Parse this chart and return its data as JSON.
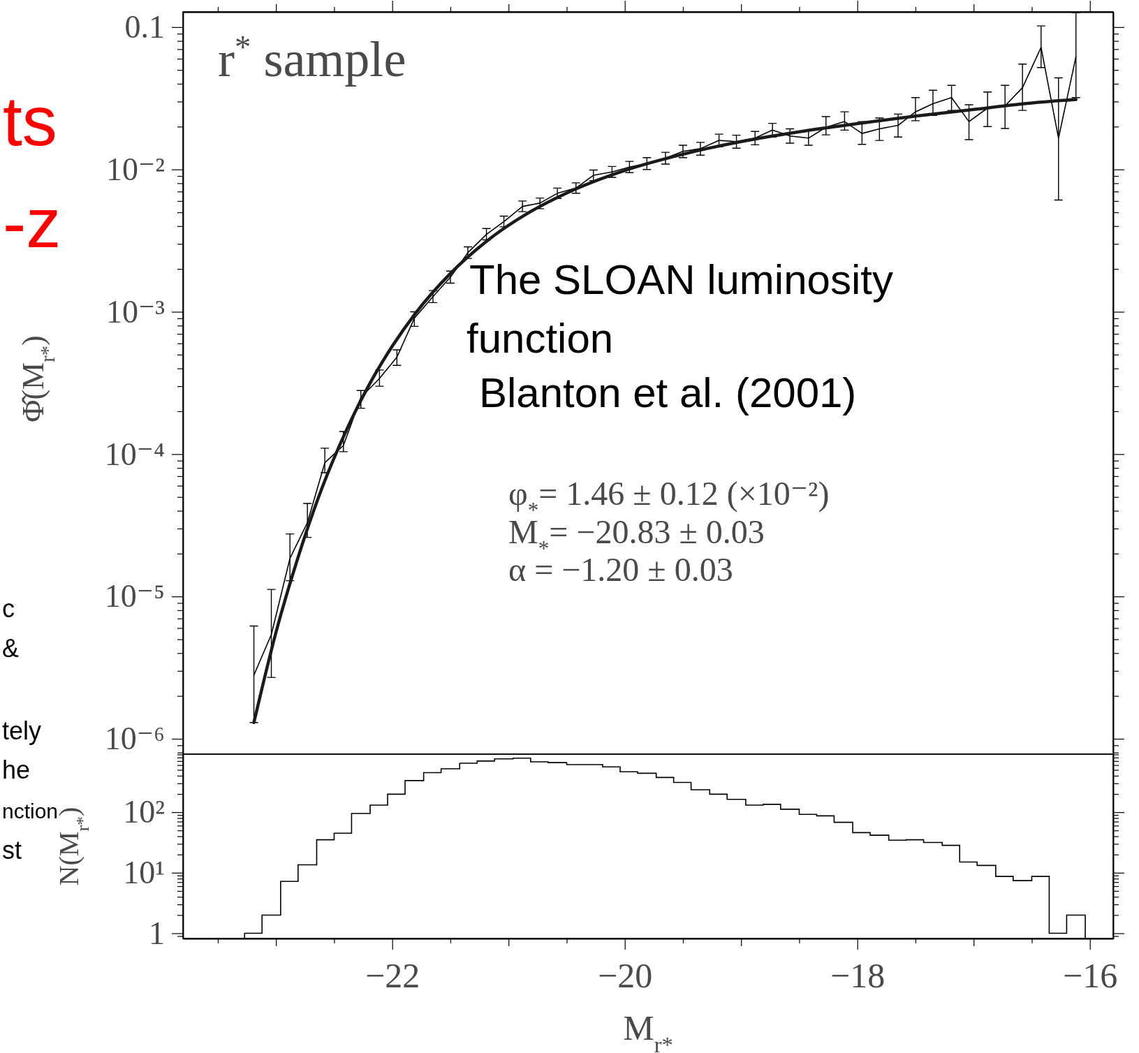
{
  "chart_data": [
    {
      "type": "line",
      "ylabel": "Φ̂(M$_{r*}$)",
      "log": "y",
      "tick_labels": "y",
      "xlim": [
        -23.8,
        -15.8
      ],
      "xticks": [
        {
          "value": -23.5,
          "label": null
        },
        {
          "value": -23,
          "label": null
        },
        {
          "value": -22.5,
          "label": null
        },
        {
          "value": -22,
          "label": null
        },
        {
          "value": -21.5,
          "label": null
        },
        {
          "value": -21,
          "label": null
        },
        {
          "value": -20.5,
          "label": null
        },
        {
          "value": -20,
          "label": null
        },
        {
          "value": -19.5,
          "label": null
        },
        {
          "value": -19,
          "label": null
        },
        {
          "value": -18.5,
          "label": null
        },
        {
          "value": -18,
          "label": null
        },
        {
          "value": -17.5,
          "label": null
        },
        {
          "value": -17,
          "label": null
        },
        {
          "value": -16.5,
          "label": null
        },
        {
          "value": -16,
          "label": null
        }
      ],
      "ylim": [
        7.8e-07,
        0.128
      ],
      "yticks": [
        {
          "value": 8e-07,
          "label": null
        },
        {
          "value": 9e-07,
          "label": null
        },
        {
          "value": 1e-06,
          "label": "10⁻⁶"
        },
        {
          "value": 2e-06,
          "label": null
        },
        {
          "value": 3e-06,
          "label": null
        },
        {
          "value": 4e-06,
          "label": null
        },
        {
          "value": 5e-06,
          "label": null
        },
        {
          "value": 6e-06,
          "label": null
        },
        {
          "value": 7e-06,
          "label": null
        },
        {
          "value": 8e-06,
          "label": null
        },
        {
          "value": 9e-06,
          "label": null
        },
        {
          "value": 1e-05,
          "label": "10⁻⁵"
        },
        {
          "value": 2e-05,
          "label": null
        },
        {
          "value": 3e-05,
          "label": null
        },
        {
          "value": 4e-05,
          "label": null
        },
        {
          "value": 5e-05,
          "label": null
        },
        {
          "value": 6e-05,
          "label": null
        },
        {
          "value": 7e-05,
          "label": null
        },
        {
          "value": 8e-05,
          "label": null
        },
        {
          "value": 9e-05,
          "label": null
        },
        {
          "value": 0.0001,
          "label": "10⁻⁴"
        },
        {
          "value": 0.0002,
          "label": null
        },
        {
          "value": 0.0003,
          "label": null
        },
        {
          "value": 0.0004,
          "label": null
        },
        {
          "value": 0.0005,
          "label": null
        },
        {
          "value": 0.0006,
          "label": null
        },
        {
          "value": 0.0007,
          "label": null
        },
        {
          "value": 0.0008,
          "label": null
        },
        {
          "value": 0.0009,
          "label": null
        },
        {
          "value": 0.001,
          "label": "10⁻³"
        },
        {
          "value": 0.002,
          "label": null
        },
        {
          "value": 0.003,
          "label": null
        },
        {
          "value": 0.004,
          "label": null
        },
        {
          "value": 0.005,
          "label": null
        },
        {
          "value": 0.006,
          "label": null
        },
        {
          "value": 0.007,
          "label": null
        },
        {
          "value": 0.008,
          "label": null
        },
        {
          "value": 0.009,
          "label": null
        },
        {
          "value": 0.01,
          "label": "10⁻²"
        },
        {
          "value": 0.02,
          "label": null
        },
        {
          "value": 0.03,
          "label": null
        },
        {
          "value": 0.04,
          "label": null
        },
        {
          "value": 0.05,
          "label": null
        },
        {
          "value": 0.06,
          "label": null
        },
        {
          "value": 0.07,
          "label": null
        },
        {
          "value": 0.08,
          "label": null
        },
        {
          "value": 0.09,
          "label": null
        },
        0.1
      ],
      "series": [
        {
          "color": "#000000",
          "x": [
            -23.19,
            -23.04,
            -22.88,
            -22.73,
            -22.58,
            -22.42,
            -22.27,
            -22.11,
            -21.96,
            -21.81,
            -21.65,
            -21.5,
            -21.35,
            -21.19,
            -21.04,
            -20.88,
            -20.73,
            -20.58,
            -20.42,
            -20.27,
            -20.11,
            -19.96,
            -19.81,
            -19.65,
            -19.5,
            -19.35,
            -19.19,
            -19.04,
            -18.88,
            -18.73,
            -18.58,
            -18.42,
            -18.27,
            -18.11,
            -17.96,
            -17.81,
            -17.65,
            -17.5,
            -17.35,
            -17.19,
            -17.04,
            -16.88,
            -16.73,
            -16.58,
            -16.42,
            -16.27,
            -16.12
          ],
          "values": [
            2.8e-06,
            5.4e-06,
            1.85e-05,
            3.3e-05,
            8.7e-05,
            0.000115,
            0.00025,
            0.00034,
            0.00048,
            0.0009,
            0.00128,
            0.00175,
            0.0026,
            0.0035,
            0.0043,
            0.0055,
            0.0058,
            0.0068,
            0.0074,
            0.0091,
            0.0096,
            0.0104,
            0.011,
            0.012,
            0.0134,
            0.014,
            0.016,
            0.0157,
            0.0166,
            0.0189,
            0.0172,
            0.0166,
            0.0198,
            0.0217,
            0.0179,
            0.0193,
            0.0204,
            0.0254,
            0.029,
            0.032,
            0.0217,
            0.027,
            0.028,
            0.0375,
            0.072,
            0.0166,
            0.062
          ],
          "errors": [
            [
              1.3e-06,
              6.2e-06
            ],
            [
              2.7e-06,
              1.12e-05
            ],
            [
              1.29e-05,
              2.75e-05
            ],
            [
              2.6e-05,
              4.5e-05
            ],
            [
              7.4e-05,
              0.00011
            ],
            [
              0.000104,
              0.000144
            ],
            [
              0.00021,
              0.00028
            ],
            [
              0.0003,
              0.00039
            ],
            [
              0.00042,
              0.00054
            ],
            [
              0.00079,
              0.001
            ],
            [
              0.00116,
              0.00141
            ],
            [
              0.00159,
              0.00193
            ],
            [
              0.00237,
              0.00286
            ],
            [
              0.0032,
              0.00385
            ],
            [
              0.00395,
              0.0047
            ],
            [
              0.00505,
              0.006
            ],
            [
              0.0053,
              0.0063
            ],
            [
              0.00625,
              0.0074
            ],
            [
              0.0068,
              0.00805
            ],
            [
              0.00835,
              0.0099
            ],
            [
              0.0088,
              0.0105
            ],
            [
              0.0095,
              0.0114
            ],
            [
              0.01,
              0.0121
            ],
            [
              0.0109,
              0.0132
            ],
            [
              0.0121,
              0.0148
            ],
            [
              0.0126,
              0.0155
            ],
            [
              0.0144,
              0.0177
            ],
            [
              0.0141,
              0.0174
            ],
            [
              0.0149,
              0.0185
            ],
            [
              0.0169,
              0.0211
            ],
            [
              0.0153,
              0.0193
            ],
            [
              0.0148,
              0.0187
            ],
            [
              0.0175,
              0.0235
            ],
            [
              0.0189,
              0.0254
            ],
            [
              0.015,
              0.0217
            ],
            [
              0.016,
              0.023
            ],
            [
              0.0169,
              0.0245
            ],
            [
              0.022,
              0.032
            ],
            [
              0.024,
              0.036
            ],
            [
              0.026,
              0.039
            ],
            [
              0.0162,
              0.0285
            ],
            [
              0.02,
              0.035
            ],
            [
              0.0194,
              0.039
            ],
            [
              0.026,
              0.055
            ],
            [
              0.052,
              0.102
            ],
            [
              0.0061,
              0.044
            ],
            [
              0.032,
              0.126
            ]
          ]
        },
        {
          "color": "#1a1a1a",
          "x": [
            -23.19,
            -23.0,
            -22.8,
            -22.6,
            -22.4,
            -22.2,
            -22.0,
            -21.8,
            -21.5,
            -21.2,
            -20.83,
            -20.5,
            -20.0,
            -19.5,
            -19.0,
            -18.5,
            -18.0,
            -17.5,
            -17.0,
            -16.5,
            -16.12
          ],
          "values": [
            1.3e-06,
            5.6e-06,
            2e-05,
            5.9e-05,
            0.000144,
            0.000306,
            0.000573,
            0.000977,
            0.00186,
            0.00308,
            0.00495,
            0.00683,
            0.00984,
            0.0128,
            0.0157,
            0.0184,
            0.021,
            0.0237,
            0.0264,
            0.0293,
            0.031
          ]
        }
      ],
      "annotations": [
        "r$^{*}$ sample",
        "The SLOAN luminosity function",
        "Blanton et al. (2001)",
        "φ$_{*}$=   1.46 ± 0.12 (×10⁻²)",
        "M$_{*}$= −20.83 ± 0.03",
        "α   = −1.20 ± 0.03",
        "ts",
        "-z",
        "c",
        "&",
        "tely",
        "he",
        "nction",
        "st"
      ]
    },
    {
      "type": "histogram",
      "xlabel": "M$_{r*}$",
      "ylabel": "N(M$_{r*}$)",
      "log": "y",
      "xlim": [
        -23.8,
        -15.8
      ],
      "xticks": [
        {
          "value": -23.5,
          "label": null
        },
        {
          "value": -23,
          "label": null
        },
        {
          "value": -22.5,
          "label": null
        },
        {
          "value": -22,
          "label": "−22"
        },
        {
          "value": -21.5,
          "label": null
        },
        {
          "value": -21,
          "label": null
        },
        {
          "value": -20.5,
          "label": null
        },
        {
          "value": -20,
          "label": "−20"
        },
        {
          "value": -19.5,
          "label": null
        },
        {
          "value": -19,
          "label": null
        },
        {
          "value": -18.5,
          "label": null
        },
        {
          "value": -18,
          "label": "−18"
        },
        {
          "value": -17.5,
          "label": null
        },
        {
          "value": -17,
          "label": null
        },
        {
          "value": -16.5,
          "label": null
        },
        {
          "value": -16,
          "label": "−16"
        }
      ],
      "ylim": [
        0.82,
        910
      ],
      "yticks": [
        {
          "value": 0.9,
          "label": null
        },
        1,
        {
          "value": 2,
          "label": null
        },
        {
          "value": 3,
          "label": null
        },
        {
          "value": 4,
          "label": null
        },
        {
          "value": 5,
          "label": null
        },
        {
          "value": 6,
          "label": null
        },
        {
          "value": 7,
          "label": null
        },
        {
          "value": 8,
          "label": null
        },
        {
          "value": 9,
          "label": null
        },
        {
          "value": 10,
          "label": "10¹"
        },
        {
          "value": 20,
          "label": null
        },
        {
          "value": 30,
          "label": null
        },
        {
          "value": 40,
          "label": null
        },
        {
          "value": 50,
          "label": null
        },
        {
          "value": 60,
          "label": null
        },
        {
          "value": 70,
          "label": null
        },
        {
          "value": 80,
          "label": null
        },
        {
          "value": 90,
          "label": null
        },
        {
          "value": 100,
          "label": "10²"
        },
        {
          "value": 200,
          "label": null
        },
        {
          "value": 300,
          "label": null
        },
        {
          "value": 400,
          "label": null
        },
        {
          "value": 500,
          "label": null
        },
        {
          "value": 600,
          "label": null
        },
        {
          "value": 700,
          "label": null
        },
        {
          "value": 800,
          "label": null
        },
        {
          "value": 900,
          "label": null
        }
      ],
      "bins": [
        -23.27,
        -23.12,
        -22.96,
        -22.81,
        -22.65,
        -22.5,
        -22.35,
        -22.19,
        -22.04,
        -21.89,
        -21.73,
        -21.58,
        -21.42,
        -21.27,
        -21.12,
        -20.96,
        -20.81,
        -20.66,
        -20.5,
        -20.35,
        -20.19,
        -20.04,
        -19.89,
        -19.73,
        -19.58,
        -19.43,
        -19.27,
        -19.12,
        -18.96,
        -18.81,
        -18.66,
        -18.5,
        -18.35,
        -18.2,
        -18.04,
        -17.89,
        -17.73,
        -17.58,
        -17.43,
        -17.27,
        -17.12,
        -16.97,
        -16.81,
        -16.66,
        -16.5,
        -16.35,
        -16.2,
        -16.04
      ],
      "values": [
        1,
        2,
        7.2,
        13.5,
        35,
        45,
        95,
        131,
        198,
        333,
        450,
        520,
        645,
        700,
        760,
        780,
        680,
        660,
        610,
        610,
        560,
        465,
        440,
        375,
        310,
        235,
        198,
        163,
        131,
        135,
        112,
        92,
        87,
        68,
        46,
        41.6,
        34.5,
        35,
        31.6,
        28.3,
        15,
        13.2,
        8.7,
        7.4,
        8.7,
        1,
        2
      ],
      "color": "#000000"
    }
  ]
}
